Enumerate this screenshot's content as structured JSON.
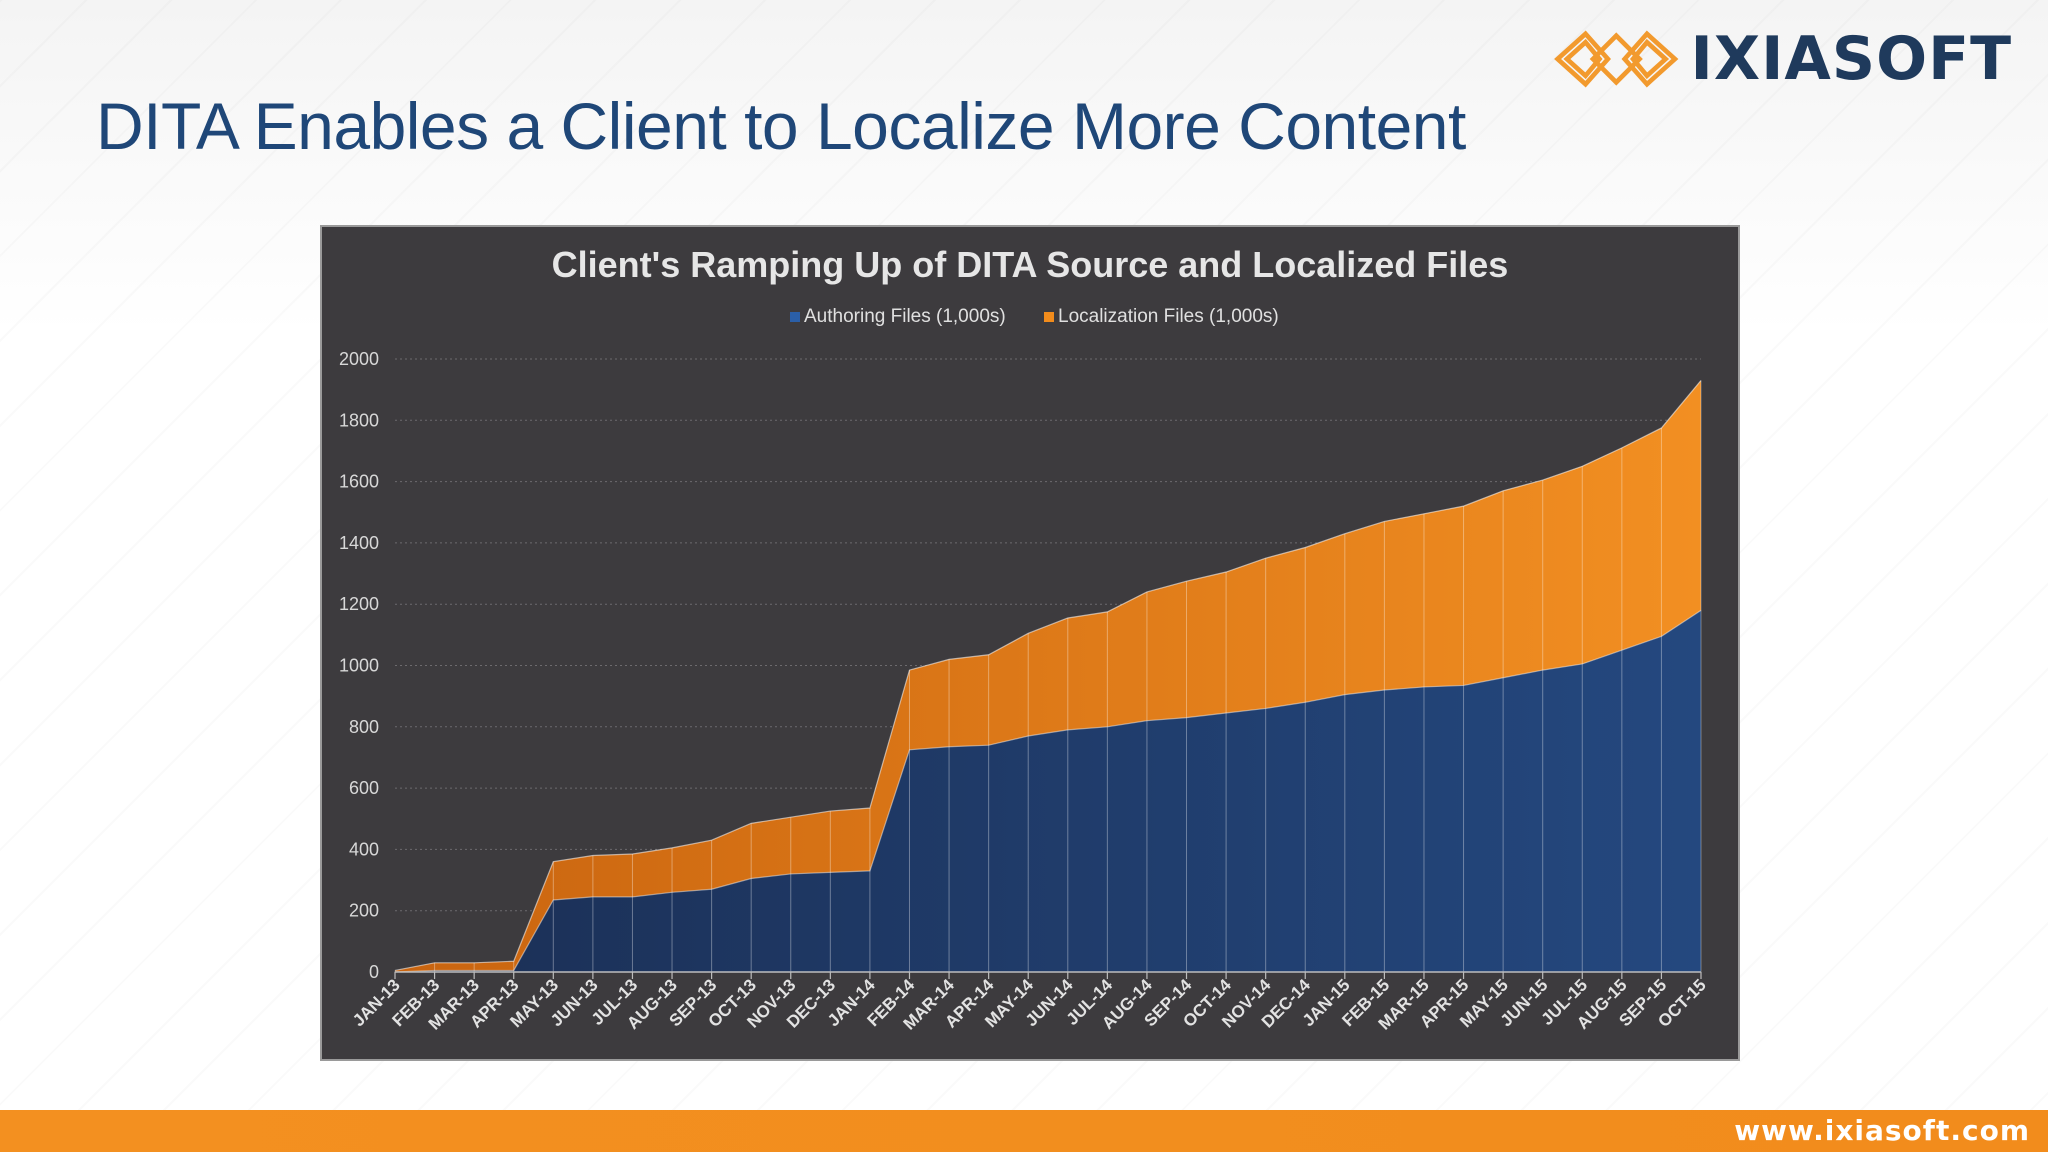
{
  "slide": {
    "title": "DITA Enables a Client to Localize More Content",
    "logo_text": "IXIASOFT",
    "footer_url": "www.ixiasoft.com"
  },
  "colors": {
    "title": "#1f4778",
    "panel_bg": "#3d3b3e",
    "authoring": "#1f3f70",
    "localization": "#e07b1a",
    "footer": "#f39020",
    "logo_mark": "#f29a2e"
  },
  "icons": {
    "logo_mark": "interlocking-diamonds-logo-icon"
  },
  "chart_data": {
    "type": "area",
    "stacked": true,
    "title": "Client's Ramping Up of DITA Source and Localized Files",
    "xlabel": "",
    "ylabel": "",
    "ylim": [
      0,
      2000
    ],
    "yticks": [
      0,
      200,
      400,
      600,
      800,
      1000,
      1200,
      1400,
      1600,
      1800,
      2000
    ],
    "grid": true,
    "legend_position": "top",
    "categories": [
      "JAN-13",
      "FEB-13",
      "MAR-13",
      "APR-13",
      "MAY-13",
      "JUN-13",
      "JUL-13",
      "AUG-13",
      "SEP-13",
      "OCT-13",
      "NOV-13",
      "DEC-13",
      "JAN-14",
      "FEB-14",
      "MAR-14",
      "APR-14",
      "MAY-14",
      "JUN-14",
      "JUL-14",
      "AUG-14",
      "SEP-14",
      "OCT-14",
      "NOV-14",
      "DEC-14",
      "JAN-15",
      "FEB-15",
      "MAR-15",
      "APR-15",
      "MAY-15",
      "JUN-15",
      "JUL-15",
      "AUG-15",
      "SEP-15",
      "OCT-15"
    ],
    "series": [
      {
        "name": "Authoring Files (1,000s)",
        "values": [
          0,
          5,
          5,
          5,
          235,
          245,
          245,
          260,
          270,
          305,
          320,
          325,
          330,
          725,
          735,
          740,
          770,
          790,
          800,
          820,
          830,
          845,
          860,
          880,
          905,
          920,
          930,
          935,
          960,
          985,
          1005,
          1050,
          1095,
          1180
        ]
      },
      {
        "name": "Localization Files (1,000s)",
        "values": [
          5,
          25,
          25,
          30,
          125,
          135,
          140,
          145,
          160,
          180,
          185,
          200,
          205,
          260,
          285,
          295,
          335,
          365,
          375,
          420,
          445,
          460,
          490,
          505,
          525,
          550,
          565,
          585,
          610,
          620,
          645,
          660,
          680,
          750
        ]
      }
    ]
  }
}
